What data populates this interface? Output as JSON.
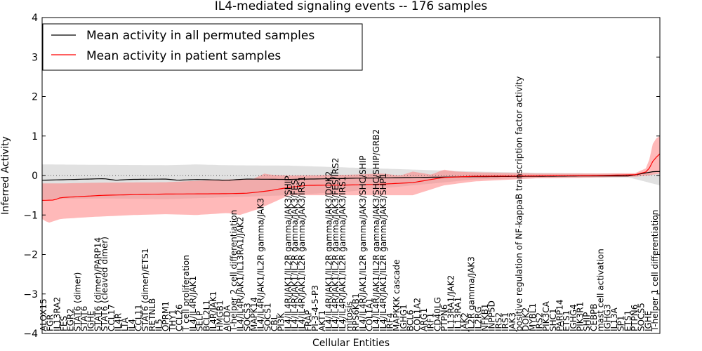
{
  "chart_data": {
    "type": "line",
    "title": "IL4-mediated signaling events -- 176 samples",
    "xlabel": "Cellular Entities",
    "ylabel": "Inferred Activity",
    "ylim": [
      -4,
      4
    ],
    "yticks": [
      -4,
      -3,
      -2,
      -1,
      0,
      1,
      2,
      3,
      4
    ],
    "grid": false,
    "legend_position": "top-left",
    "colors": {
      "permuted": "#000000",
      "permuted_band": "#c8c8c8",
      "patient": "#ff0000",
      "patient_band": "#ff8080",
      "zero_line": "#555555"
    },
    "categories": [
      "ALOX15",
      "FGR",
      "IL13RA2",
      "FES",
      "EGR2",
      "STAT6 (dimer)",
      "STAT6",
      "IGHE",
      "STAT6 (dimer)/PARP14",
      "STAT6 (cleaved dimer)",
      "CCL17",
      "IL4R",
      "LTA",
      "IL4",
      "CCL11",
      "STAT6 (dimer)/ETS1",
      "RETNLB",
      "IL5",
      "OPRM1",
      "THY1",
      "CCL26",
      "T cell proliferation",
      "IL4/IL4R/JAK1",
      "SELP",
      "BCL2L1",
      "IL4R/JAK1",
      "HMGB1",
      "AICDA",
      "T-helper 2 cell differentiation",
      "IL4/IL4R/JAK1/IL13RA1/JAK2",
      "SOCS3",
      "MAPK14",
      "IL4/IL4R/JAK1/IL2R gamma/JAK3",
      "SOCS1",
      "CBL",
      "PI3K",
      "IL4/IL4R/JAK1/IL2R gamma/JAK3/SHIP",
      "IL4/IL4R/JAK1/IL2R gamma/JAK3/FES",
      "IL4/IL4R/JAK1/IL2R gamma/JAK3/IRS1",
      "FRAP",
      "PI-3-4-5-P3",
      "AKT1",
      "IL4/IL4R/JAK1/IL2R gamma/JAK3/DOK2",
      "IL4/IL4R/JAK1/IL2R gamma/JAK3/FES/IRS2",
      "IL4/IL4R/JAK1/IL2R gamma/JAK3/IRS1",
      "mitosis",
      "RPS6KB1",
      "IL4/IL4R/JAK1/IL2R gamma/JAK3/SHC/SHIP",
      "COL1A1",
      "IL4/IL4R/JAK1/IL2R gamma/JAK3/SHC/SHIP/GRB2",
      "IL4/IL4R/JAK1/IL2R gamma/JAK3/SHP1",
      "IRF4",
      "MAPKKK cascade",
      "IGHG1",
      "BCL6",
      "COL1A2",
      "ARG1",
      "IRF1",
      "CD40LG",
      "PTPN6",
      "IL13RA1/JAK2",
      "IL13RA1",
      "JAK2",
      "IL2R gamma/JAK3",
      "IL2RG",
      "NFKB1",
      "INPP5D",
      "IRS2",
      "IRS1",
      "JAK3",
      "positive regulation of NF-kappaB transcription factor activity",
      "DOK2",
      "MYBL1",
      "IRS2",
      "PIK3CA",
      "SHC1",
      "PARP14",
      "ETS1",
      "IGHG4",
      "PIK3R1",
      "SHIP",
      "CEBPB",
      "mast cell activation",
      "IGHG3",
      "IL13A",
      "SP1",
      "ETS1",
      "PTPN6",
      "SOCS5",
      "IGHE",
      "T-helper 1 cell differentiation"
    ],
    "permuted_mean_ctrl": [
      [
        0,
        -0.12
      ],
      [
        0.05,
        -0.1
      ],
      [
        0.1,
        -0.08
      ],
      [
        0.12,
        -0.12
      ],
      [
        0.14,
        -0.1
      ],
      [
        0.2,
        -0.09
      ],
      [
        0.22,
        -0.12
      ],
      [
        0.25,
        -0.1
      ],
      [
        0.3,
        -0.12
      ],
      [
        0.33,
        -0.09
      ],
      [
        0.4,
        -0.1
      ],
      [
        0.5,
        -0.07
      ],
      [
        0.6,
        -0.05
      ],
      [
        0.7,
        -0.03
      ],
      [
        0.8,
        -0.02
      ],
      [
        0.9,
        -0.01
      ],
      [
        0.95,
        -0.01
      ],
      [
        0.99,
        0.1
      ],
      [
        1,
        0.1
      ]
    ],
    "permuted_upper_ctrl": [
      [
        0,
        0.28
      ],
      [
        0.1,
        0.27
      ],
      [
        0.2,
        0.26
      ],
      [
        0.25,
        0.28
      ],
      [
        0.3,
        0.26
      ],
      [
        0.4,
        0.25
      ],
      [
        0.5,
        0.2
      ],
      [
        0.6,
        0.15
      ],
      [
        0.7,
        0.1
      ],
      [
        0.8,
        0.07
      ],
      [
        0.9,
        0.05
      ],
      [
        0.95,
        0.04
      ],
      [
        1,
        0.05
      ]
    ],
    "permuted_lower_ctrl": [
      [
        0,
        -0.6
      ],
      [
        0.1,
        -0.58
      ],
      [
        0.2,
        -0.6
      ],
      [
        0.3,
        -0.55
      ],
      [
        0.4,
        -0.5
      ],
      [
        0.5,
        -0.4
      ],
      [
        0.6,
        -0.25
      ],
      [
        0.7,
        -0.1
      ],
      [
        0.8,
        -0.06
      ],
      [
        0.9,
        -0.05
      ],
      [
        0.95,
        -0.05
      ],
      [
        1,
        -0.25
      ]
    ],
    "patient_mean_ctrl": [
      [
        0,
        -0.63
      ],
      [
        0.02,
        -0.62
      ],
      [
        0.03,
        -0.56
      ],
      [
        0.1,
        -0.5
      ],
      [
        0.2,
        -0.47
      ],
      [
        0.3,
        -0.46
      ],
      [
        0.33,
        -0.45
      ],
      [
        0.35,
        -0.42
      ],
      [
        0.37,
        -0.38
      ],
      [
        0.4,
        -0.3
      ],
      [
        0.43,
        -0.25
      ],
      [
        0.5,
        -0.24
      ],
      [
        0.55,
        -0.22
      ],
      [
        0.6,
        -0.18
      ],
      [
        0.63,
        -0.1
      ],
      [
        0.65,
        -0.05
      ],
      [
        0.7,
        -0.02
      ],
      [
        0.8,
        -0.01
      ],
      [
        0.9,
        0.0
      ],
      [
        0.96,
        0.02
      ],
      [
        0.98,
        0.1
      ],
      [
        0.99,
        0.4
      ],
      [
        1,
        0.55
      ]
    ],
    "patient_upper_ctrl": [
      [
        0,
        -0.2
      ],
      [
        0.03,
        -0.2
      ],
      [
        0.1,
        -0.18
      ],
      [
        0.2,
        -0.17
      ],
      [
        0.3,
        -0.1
      ],
      [
        0.34,
        -0.1
      ],
      [
        0.36,
        0.05
      ],
      [
        0.37,
        0.02
      ],
      [
        0.4,
        0.0
      ],
      [
        0.5,
        0.02
      ],
      [
        0.55,
        0.05
      ],
      [
        0.58,
        0.0
      ],
      [
        0.6,
        0.1
      ],
      [
        0.63,
        0.02
      ],
      [
        0.65,
        0.15
      ],
      [
        0.67,
        0.1
      ],
      [
        0.7,
        0.08
      ],
      [
        0.8,
        0.05
      ],
      [
        0.9,
        0.05
      ],
      [
        0.96,
        0.06
      ],
      [
        0.98,
        0.2
      ],
      [
        0.99,
        0.9
      ],
      [
        1,
        1.0
      ]
    ],
    "patient_lower_ctrl": [
      [
        0,
        -1.1
      ],
      [
        0.01,
        -1.2
      ],
      [
        0.03,
        -1.1
      ],
      [
        0.08,
        -1.05
      ],
      [
        0.15,
        -1.0
      ],
      [
        0.2,
        -0.98
      ],
      [
        0.25,
        -1.0
      ],
      [
        0.3,
        -0.95
      ],
      [
        0.32,
        -1.0
      ],
      [
        0.35,
        -0.85
      ],
      [
        0.4,
        -0.5
      ],
      [
        0.5,
        -0.5
      ],
      [
        0.55,
        -0.5
      ],
      [
        0.6,
        -0.5
      ],
      [
        0.65,
        -0.25
      ],
      [
        0.7,
        -0.15
      ],
      [
        0.8,
        -0.07
      ],
      [
        0.9,
        -0.05
      ],
      [
        0.96,
        -0.03
      ],
      [
        0.98,
        0.0
      ],
      [
        1,
        0.05
      ]
    ],
    "series": [
      {
        "name": "Mean activity in all permuted samples",
        "key": "permuted"
      },
      {
        "name": "Mean activity in patient samples",
        "key": "patient"
      }
    ]
  }
}
